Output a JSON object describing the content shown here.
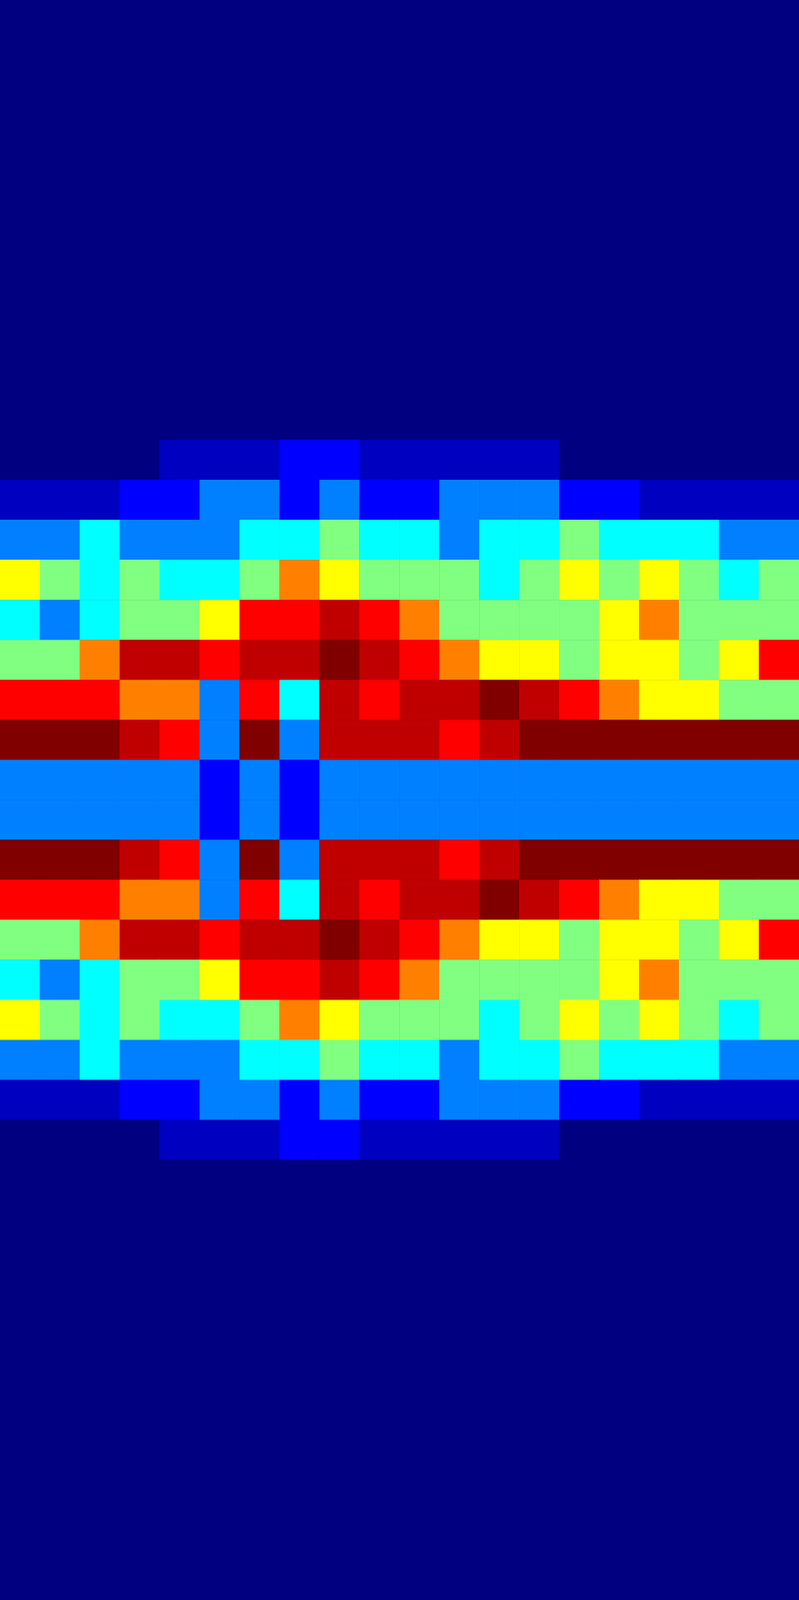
{
  "chart_data": {
    "type": "heatmap",
    "tick_labels": false,
    "grid": false,
    "color_range": [
      0,
      10
    ],
    "cells": [
      [
        0,
        0,
        0,
        0,
        0,
        0,
        0,
        0,
        0,
        0,
        0,
        0,
        0,
        0,
        0,
        0,
        0,
        0,
        0,
        0
      ],
      [
        0,
        0,
        0,
        0,
        0,
        0,
        0,
        0,
        0,
        0,
        0,
        0,
        0,
        0,
        0,
        0,
        0,
        0,
        0,
        0
      ],
      [
        0,
        0,
        0,
        0,
        0,
        0,
        0,
        0,
        0,
        0,
        0,
        0,
        0,
        0,
        0,
        0,
        0,
        0,
        0,
        0
      ],
      [
        0,
        0,
        0,
        0,
        0,
        0,
        0,
        0,
        0,
        0,
        0,
        0,
        0,
        0,
        0,
        0,
        0,
        0,
        0,
        0
      ],
      [
        0,
        0,
        0,
        0,
        0,
        0,
        0,
        0,
        0,
        0,
        0,
        0,
        0,
        0,
        0,
        0,
        0,
        0,
        0,
        0
      ],
      [
        0,
        0,
        0,
        0,
        0,
        0,
        0,
        0,
        0,
        0,
        0,
        0,
        0,
        0,
        0,
        0,
        0,
        0,
        0,
        0
      ],
      [
        0,
        0,
        0,
        0,
        0,
        0,
        0,
        0,
        0,
        0,
        0,
        0,
        0,
        0,
        0,
        0,
        0,
        0,
        0,
        0
      ],
      [
        0,
        0,
        0,
        0,
        0,
        0,
        0,
        0,
        0,
        0,
        0,
        0,
        0,
        0,
        0,
        0,
        0,
        0,
        0,
        0
      ],
      [
        0,
        0,
        0,
        0,
        0,
        0,
        0,
        0,
        0,
        0,
        0,
        0,
        0,
        0,
        0,
        0,
        0,
        0,
        0,
        0
      ],
      [
        0,
        0,
        0,
        0,
        0,
        0,
        0,
        0,
        0,
        0,
        0,
        0,
        0,
        0,
        0,
        0,
        0,
        0,
        0,
        0
      ],
      [
        0,
        0,
        0,
        0,
        0,
        0,
        0,
        0,
        0,
        0,
        0,
        0,
        0,
        0,
        0,
        0,
        0,
        0,
        0,
        0
      ],
      [
        0,
        0,
        0,
        0,
        1,
        1,
        1,
        2,
        2,
        1,
        1,
        1,
        1,
        1,
        0,
        0,
        0,
        0,
        0,
        0
      ],
      [
        1,
        1,
        1,
        2,
        2,
        3,
        3,
        2,
        3,
        2,
        2,
        3,
        3,
        3,
        2,
        2,
        1,
        1,
        1,
        1
      ],
      [
        3,
        3,
        4,
        3,
        3,
        3,
        4,
        4,
        5,
        4,
        4,
        3,
        4,
        4,
        5,
        4,
        4,
        4,
        3,
        3
      ],
      [
        6,
        5,
        4,
        5,
        4,
        4,
        5,
        7,
        6,
        5,
        5,
        5,
        4,
        5,
        6,
        5,
        6,
        5,
        4,
        5
      ],
      [
        4,
        3,
        4,
        5,
        5,
        6,
        8,
        8,
        9,
        8,
        7,
        5,
        5,
        5,
        5,
        6,
        7,
        5,
        5,
        5
      ],
      [
        5,
        5,
        7,
        9,
        9,
        8,
        9,
        9,
        10,
        9,
        8,
        7,
        6,
        6,
        5,
        6,
        6,
        5,
        6,
        8
      ],
      [
        8,
        8,
        8,
        7,
        7,
        3,
        8,
        4,
        9,
        8,
        9,
        9,
        10,
        9,
        8,
        7,
        6,
        6,
        5,
        5
      ],
      [
        10,
        10,
        10,
        9,
        8,
        3,
        10,
        3,
        9,
        9,
        9,
        8,
        9,
        10,
        10,
        10,
        10,
        10,
        10,
        10
      ],
      [
        3,
        3,
        3,
        3,
        3,
        2,
        3,
        2,
        3,
        3,
        3,
        3,
        3,
        3,
        3,
        3,
        3,
        3,
        3,
        3
      ],
      [
        3,
        3,
        3,
        3,
        3,
        2,
        3,
        2,
        3,
        3,
        3,
        3,
        3,
        3,
        3,
        3,
        3,
        3,
        3,
        3
      ],
      [
        10,
        10,
        10,
        9,
        8,
        3,
        10,
        3,
        9,
        9,
        9,
        8,
        9,
        10,
        10,
        10,
        10,
        10,
        10,
        10
      ],
      [
        8,
        8,
        8,
        7,
        7,
        3,
        8,
        4,
        9,
        8,
        9,
        9,
        10,
        9,
        8,
        7,
        6,
        6,
        5,
        5
      ],
      [
        5,
        5,
        7,
        9,
        9,
        8,
        9,
        9,
        10,
        9,
        8,
        7,
        6,
        6,
        5,
        6,
        6,
        5,
        6,
        8
      ],
      [
        4,
        3,
        4,
        5,
        5,
        6,
        8,
        8,
        9,
        8,
        7,
        5,
        5,
        5,
        5,
        6,
        7,
        5,
        5,
        5
      ],
      [
        6,
        5,
        4,
        5,
        4,
        4,
        5,
        7,
        6,
        5,
        5,
        5,
        4,
        5,
        6,
        5,
        6,
        5,
        4,
        5
      ],
      [
        3,
        3,
        4,
        3,
        3,
        3,
        4,
        4,
        5,
        4,
        4,
        3,
        4,
        4,
        5,
        4,
        4,
        4,
        3,
        3
      ],
      [
        1,
        1,
        1,
        2,
        2,
        3,
        3,
        2,
        3,
        2,
        2,
        3,
        3,
        3,
        2,
        2,
        1,
        1,
        1,
        1
      ],
      [
        0,
        0,
        0,
        0,
        1,
        1,
        1,
        2,
        2,
        1,
        1,
        1,
        1,
        1,
        0,
        0,
        0,
        0,
        0,
        0
      ],
      [
        0,
        0,
        0,
        0,
        0,
        0,
        0,
        0,
        0,
        0,
        0,
        0,
        0,
        0,
        0,
        0,
        0,
        0,
        0,
        0
      ],
      [
        0,
        0,
        0,
        0,
        0,
        0,
        0,
        0,
        0,
        0,
        0,
        0,
        0,
        0,
        0,
        0,
        0,
        0,
        0,
        0
      ],
      [
        0,
        0,
        0,
        0,
        0,
        0,
        0,
        0,
        0,
        0,
        0,
        0,
        0,
        0,
        0,
        0,
        0,
        0,
        0,
        0
      ],
      [
        0,
        0,
        0,
        0,
        0,
        0,
        0,
        0,
        0,
        0,
        0,
        0,
        0,
        0,
        0,
        0,
        0,
        0,
        0,
        0
      ],
      [
        0,
        0,
        0,
        0,
        0,
        0,
        0,
        0,
        0,
        0,
        0,
        0,
        0,
        0,
        0,
        0,
        0,
        0,
        0,
        0
      ],
      [
        0,
        0,
        0,
        0,
        0,
        0,
        0,
        0,
        0,
        0,
        0,
        0,
        0,
        0,
        0,
        0,
        0,
        0,
        0,
        0
      ],
      [
        0,
        0,
        0,
        0,
        0,
        0,
        0,
        0,
        0,
        0,
        0,
        0,
        0,
        0,
        0,
        0,
        0,
        0,
        0,
        0
      ],
      [
        0,
        0,
        0,
        0,
        0,
        0,
        0,
        0,
        0,
        0,
        0,
        0,
        0,
        0,
        0,
        0,
        0,
        0,
        0,
        0
      ],
      [
        0,
        0,
        0,
        0,
        0,
        0,
        0,
        0,
        0,
        0,
        0,
        0,
        0,
        0,
        0,
        0,
        0,
        0,
        0,
        0
      ],
      [
        0,
        0,
        0,
        0,
        0,
        0,
        0,
        0,
        0,
        0,
        0,
        0,
        0,
        0,
        0,
        0,
        0,
        0,
        0,
        0
      ],
      [
        0,
        0,
        0,
        0,
        0,
        0,
        0,
        0,
        0,
        0,
        0,
        0,
        0,
        0,
        0,
        0,
        0,
        0,
        0,
        0
      ]
    ]
  }
}
